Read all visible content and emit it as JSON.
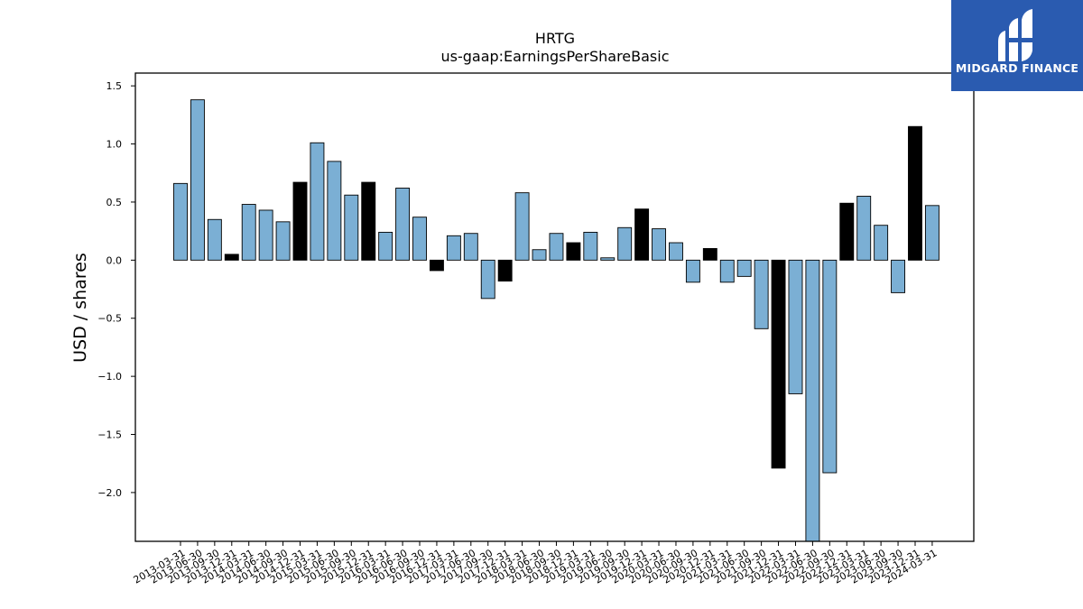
{
  "brand": {
    "name": "MIDGARD FINANCE",
    "bg_color": "#2a5bb0"
  },
  "chart_data": {
    "type": "bar",
    "title": "HRTG",
    "subtitle": "us-gaap:EarningsPerShareBasic",
    "xlabel": "",
    "ylabel": "USD / shares",
    "ylim": [
      -2.42,
      1.61
    ],
    "yticks": [
      1.5,
      1.0,
      0.5,
      0.0,
      -0.5,
      -1.0,
      -1.5,
      -2.0
    ],
    "ytick_labels": [
      "1.5",
      "1.0",
      "0.5",
      "0.0",
      "−0.5",
      "−1.0",
      "−1.5",
      "−2.0"
    ],
    "colors": {
      "quarter": "#7bafd4",
      "annual": "#000000",
      "edge": "#000000"
    },
    "categories": [
      "2013-03-31",
      "2013-06-30",
      "2013-09-30",
      "2013-12-31",
      "2014-03-31",
      "2014-06-30",
      "2014-09-30",
      "2014-12-31",
      "2015-03-31",
      "2015-06-30",
      "2015-09-30",
      "2015-12-31",
      "2016-03-31",
      "2016-06-30",
      "2016-09-30",
      "2016-12-31",
      "2017-03-31",
      "2017-06-30",
      "2017-09-30",
      "2017-12-31",
      "2018-03-31",
      "2018-06-30",
      "2018-09-30",
      "2018-12-31",
      "2019-03-31",
      "2019-06-30",
      "2019-09-30",
      "2019-12-31",
      "2020-03-31",
      "2020-06-30",
      "2020-09-30",
      "2020-12-31",
      "2021-03-31",
      "2021-06-30",
      "2021-09-30",
      "2021-12-31",
      "2022-03-31",
      "2022-06-30",
      "2022-09-30",
      "2022-12-31",
      "2023-03-31",
      "2023-06-30",
      "2023-09-30",
      "2023-12-31",
      "2024-03-31"
    ],
    "values": [
      0.66,
      1.38,
      0.35,
      0.05,
      0.48,
      0.43,
      0.33,
      0.67,
      1.01,
      0.85,
      0.56,
      0.67,
      0.24,
      0.62,
      0.37,
      -0.09,
      0.21,
      0.23,
      -0.33,
      -0.18,
      0.58,
      0.09,
      0.23,
      0.15,
      0.24,
      0.02,
      0.28,
      0.44,
      0.27,
      0.15,
      -0.19,
      0.1,
      -0.19,
      -0.14,
      -0.59,
      -1.79,
      -1.15,
      -2.5,
      -1.83,
      0.49,
      0.55,
      0.3,
      -0.28,
      1.15,
      0.47
    ],
    "annual": [
      false,
      false,
      false,
      true,
      false,
      false,
      false,
      true,
      false,
      false,
      false,
      true,
      false,
      false,
      false,
      true,
      false,
      false,
      false,
      true,
      false,
      false,
      false,
      true,
      false,
      false,
      false,
      true,
      false,
      false,
      false,
      true,
      false,
      false,
      false,
      true,
      false,
      false,
      false,
      true,
      false,
      false,
      false,
      true,
      false
    ]
  }
}
